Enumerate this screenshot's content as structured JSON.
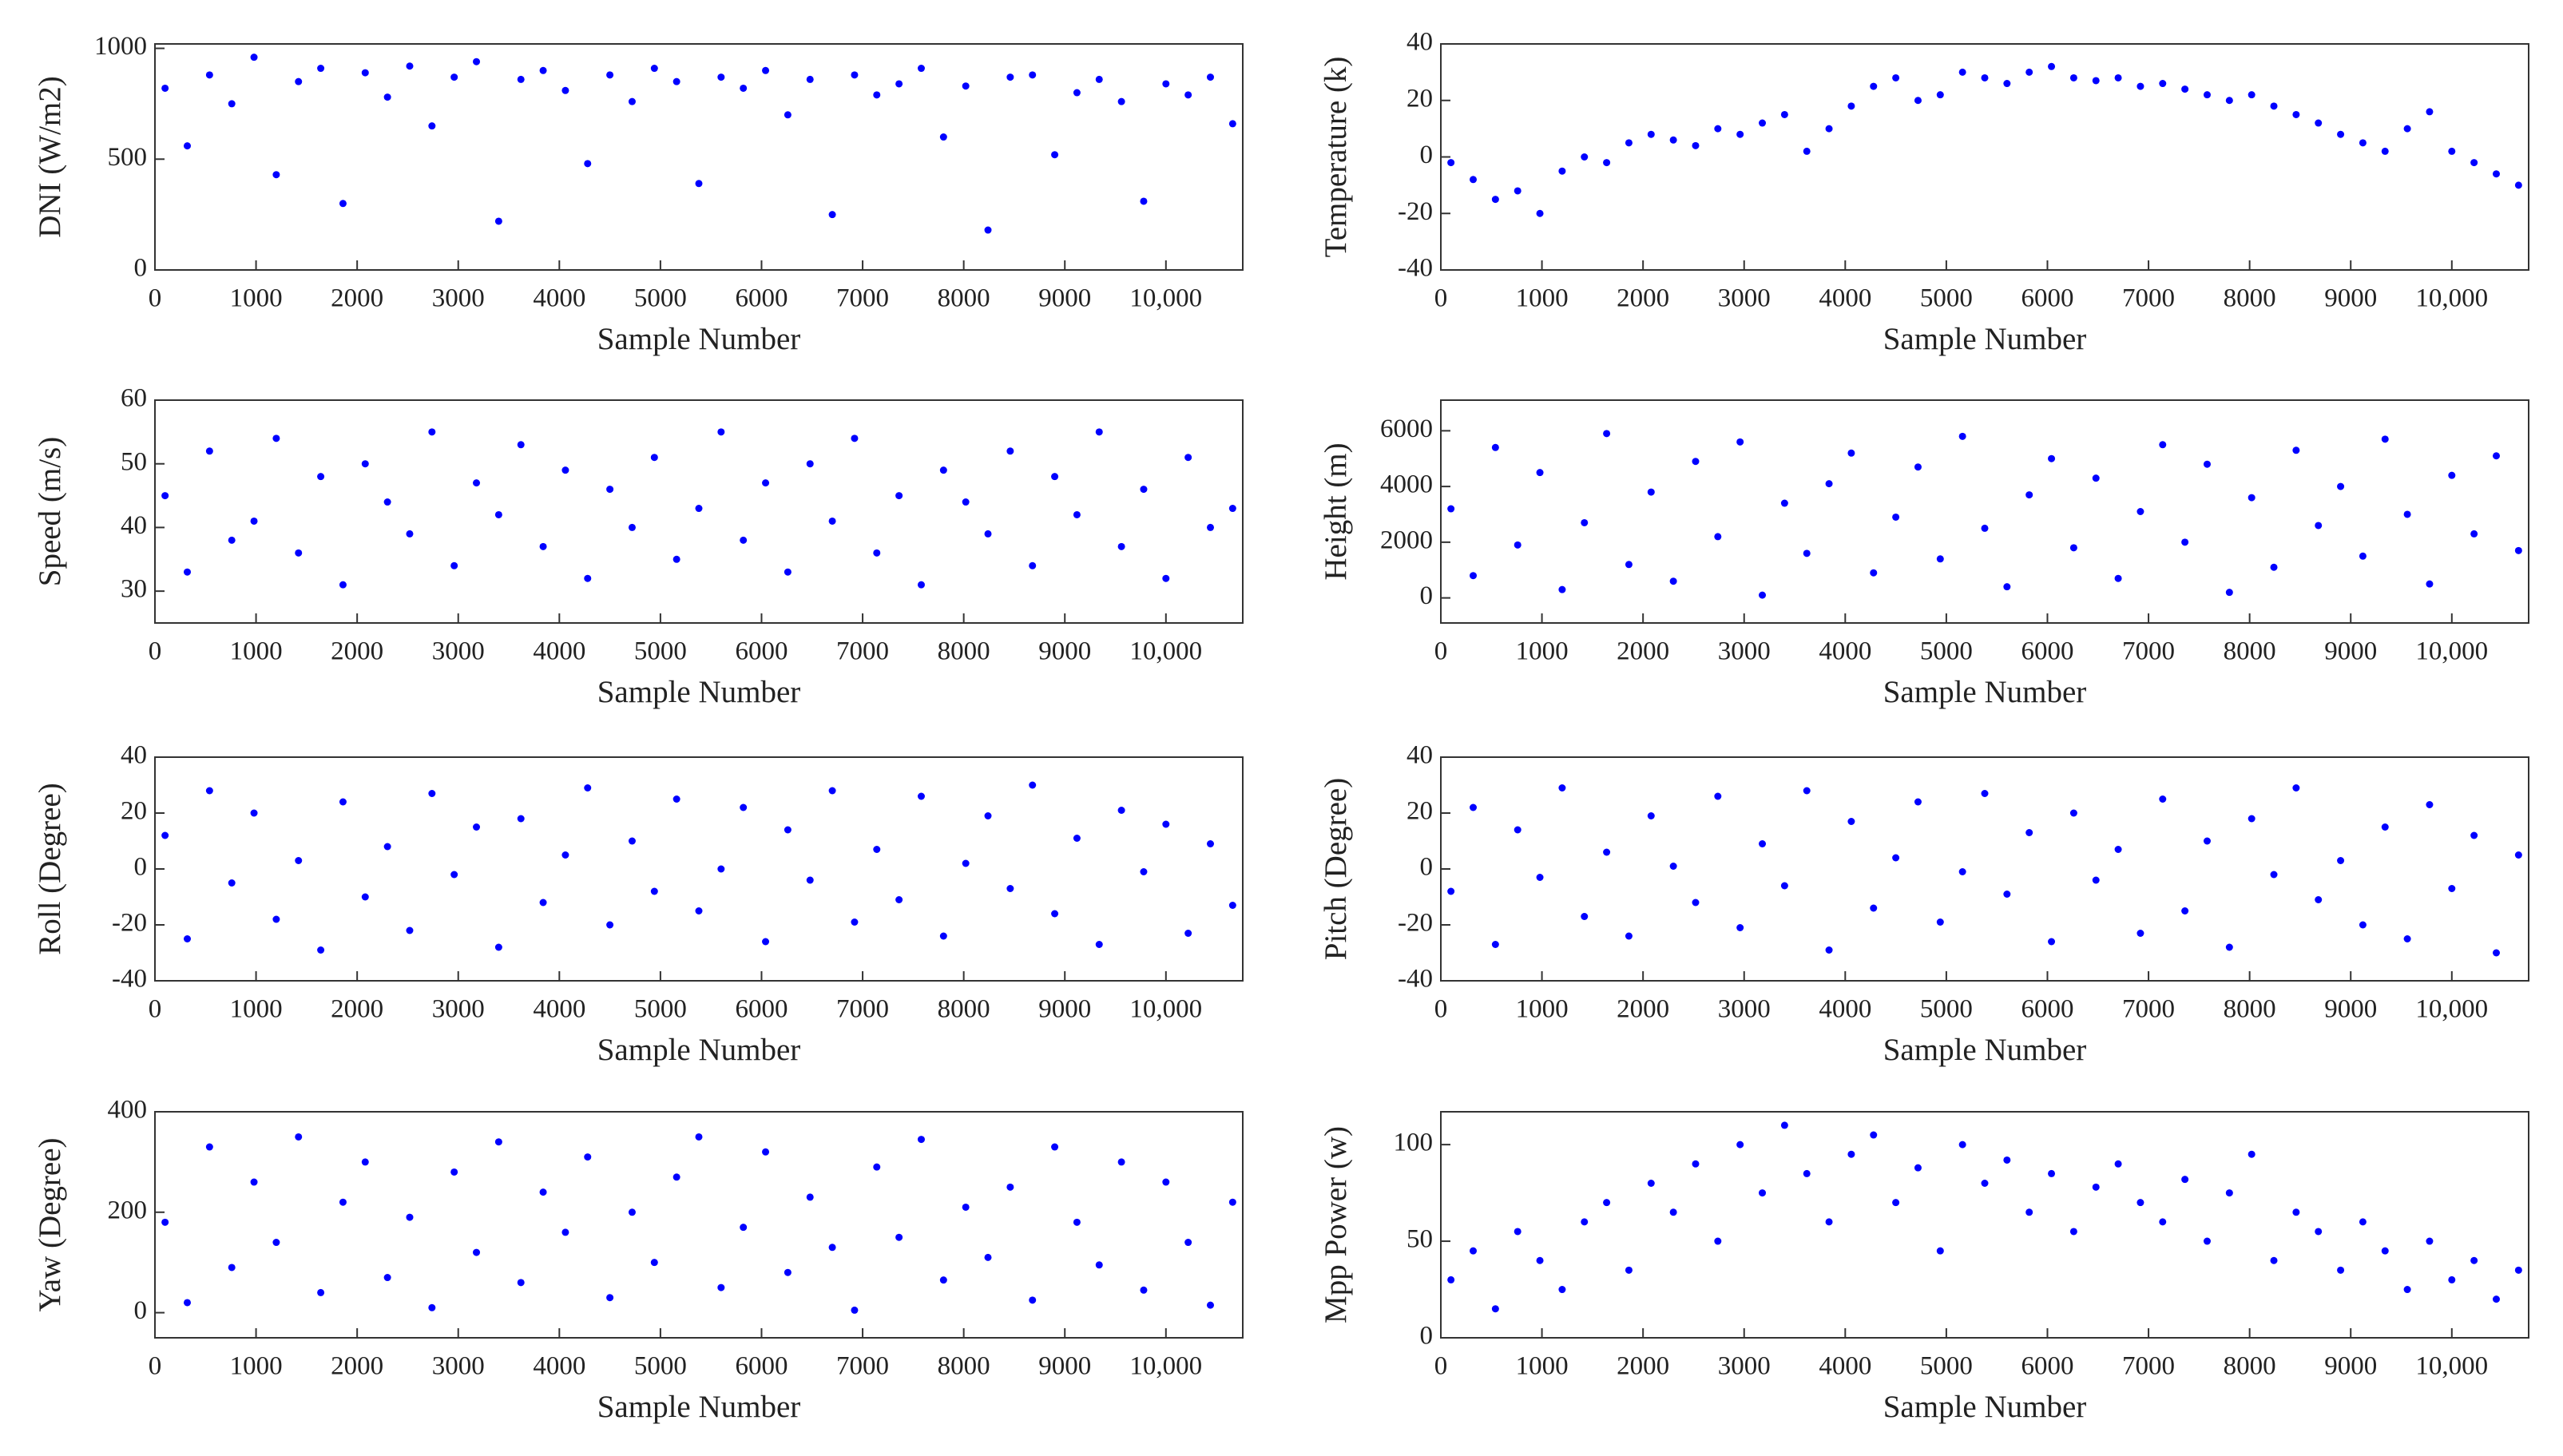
{
  "chart_data": [
    {
      "type": "scatter",
      "xlabel": "Sample Number",
      "ylabel": "DNI (W/m2)",
      "color": "#0000ff",
      "xlim": [
        0,
        10760
      ],
      "xticks": [
        0,
        1000,
        2000,
        3000,
        4000,
        5000,
        6000,
        7000,
        8000,
        9000,
        {
          "value": 10000,
          "label": "10,000"
        }
      ],
      "ylim": [
        0,
        1020
      ],
      "yticks": [
        0,
        500,
        1000
      ],
      "x": [
        100,
        320,
        540,
        760,
        980,
        1200,
        1420,
        1640,
        1860,
        2080,
        2300,
        2520,
        2740,
        2960,
        3180,
        3400,
        3620,
        3840,
        4060,
        4280,
        4500,
        4720,
        4940,
        5160,
        5380,
        5600,
        5820,
        6040,
        6260,
        6480,
        6700,
        6920,
        7140,
        7360,
        7580,
        7800,
        8020,
        8240,
        8460,
        8680,
        8900,
        9120,
        9340,
        9560,
        9780,
        10000,
        10220,
        10440,
        10660
      ],
      "values": [
        820,
        560,
        880,
        750,
        960,
        430,
        850,
        910,
        300,
        890,
        780,
        920,
        650,
        870,
        940,
        220,
        860,
        900,
        810,
        480,
        880,
        760,
        910,
        850,
        390,
        870,
        820,
        900,
        700,
        860,
        250,
        880,
        790,
        840,
        910,
        600,
        830,
        180,
        870,
        880,
        520,
        800,
        860,
        760,
        310,
        840,
        790,
        870,
        660
      ]
    },
    {
      "type": "scatter",
      "xlabel": "Sample Number",
      "ylabel": "Temperature (k)",
      "color": "#0000ff",
      "xlim": [
        0,
        10760
      ],
      "xticks": [
        0,
        1000,
        2000,
        3000,
        4000,
        5000,
        6000,
        7000,
        8000,
        9000,
        {
          "value": 10000,
          "label": "10,000"
        }
      ],
      "ylim": [
        -40,
        40
      ],
      "yticks": [
        -40,
        -20,
        0,
        20,
        40
      ],
      "x": [
        100,
        320,
        540,
        760,
        980,
        1200,
        1420,
        1640,
        1860,
        2080,
        2300,
        2520,
        2740,
        2960,
        3180,
        3400,
        3620,
        3840,
        4060,
        4280,
        4500,
        4720,
        4940,
        5160,
        5380,
        5600,
        5820,
        6040,
        6260,
        6480,
        6700,
        6920,
        7140,
        7360,
        7580,
        7800,
        8020,
        8240,
        8460,
        8680,
        8900,
        9120,
        9340,
        9560,
        9780,
        10000,
        10220,
        10440,
        10660
      ],
      "values": [
        -2,
        -8,
        -15,
        -12,
        -20,
        -5,
        0,
        -2,
        5,
        8,
        6,
        4,
        10,
        8,
        12,
        15,
        2,
        10,
        18,
        25,
        28,
        20,
        22,
        30,
        28,
        26,
        30,
        32,
        28,
        27,
        28,
        25,
        26,
        24,
        22,
        20,
        22,
        18,
        15,
        12,
        8,
        5,
        2,
        10,
        16,
        2,
        -2,
        -6,
        -10
      ]
    },
    {
      "type": "scatter",
      "xlabel": "Sample Number",
      "ylabel": "Speed (m/s)",
      "color": "#0000ff",
      "xlim": [
        0,
        10760
      ],
      "xticks": [
        0,
        1000,
        2000,
        3000,
        4000,
        5000,
        6000,
        7000,
        8000,
        9000,
        {
          "value": 10000,
          "label": "10,000"
        }
      ],
      "ylim": [
        25,
        60
      ],
      "yticks": [
        30,
        40,
        50,
        60
      ],
      "x": [
        100,
        320,
        540,
        760,
        980,
        1200,
        1420,
        1640,
        1860,
        2080,
        2300,
        2520,
        2740,
        2960,
        3180,
        3400,
        3620,
        3840,
        4060,
        4280,
        4500,
        4720,
        4940,
        5160,
        5380,
        5600,
        5820,
        6040,
        6260,
        6480,
        6700,
        6920,
        7140,
        7360,
        7580,
        7800,
        8020,
        8240,
        8460,
        8680,
        8900,
        9120,
        9340,
        9560,
        9780,
        10000,
        10220,
        10440,
        10660
      ],
      "values": [
        45,
        33,
        52,
        38,
        41,
        54,
        36,
        48,
        31,
        50,
        44,
        39,
        55,
        34,
        47,
        42,
        53,
        37,
        49,
        32,
        46,
        40,
        51,
        35,
        43,
        55,
        38,
        47,
        33,
        50,
        41,
        54,
        36,
        45,
        31,
        49,
        44,
        39,
        52,
        34,
        48,
        42,
        55,
        37,
        46,
        32,
        51,
        40,
        43
      ]
    },
    {
      "type": "scatter",
      "xlabel": "Sample Number",
      "ylabel": "Height (m)",
      "color": "#0000ff",
      "xlim": [
        0,
        10760
      ],
      "xticks": [
        0,
        1000,
        2000,
        3000,
        4000,
        5000,
        6000,
        7000,
        8000,
        9000,
        {
          "value": 10000,
          "label": "10,000"
        }
      ],
      "ylim": [
        -900,
        7100
      ],
      "yticks": [
        0,
        2000,
        4000,
        6000
      ],
      "x": [
        100,
        320,
        540,
        760,
        980,
        1200,
        1420,
        1640,
        1860,
        2080,
        2300,
        2520,
        2740,
        2960,
        3180,
        3400,
        3620,
        3840,
        4060,
        4280,
        4500,
        4720,
        4940,
        5160,
        5380,
        5600,
        5820,
        6040,
        6260,
        6480,
        6700,
        6920,
        7140,
        7360,
        7580,
        7800,
        8020,
        8240,
        8460,
        8680,
        8900,
        9120,
        9340,
        9560,
        9780,
        10000,
        10220,
        10440,
        10660
      ],
      "values": [
        3200,
        800,
        5400,
        1900,
        4500,
        300,
        2700,
        5900,
        1200,
        3800,
        600,
        4900,
        2200,
        5600,
        100,
        3400,
        1600,
        4100,
        5200,
        900,
        2900,
        4700,
        1400,
        5800,
        2500,
        400,
        3700,
        5000,
        1800,
        4300,
        700,
        3100,
        5500,
        2000,
        4800,
        200,
        3600,
        1100,
        5300,
        2600,
        4000,
        1500,
        5700,
        3000,
        500,
        4400,
        2300,
        5100,
        1700
      ]
    },
    {
      "type": "scatter",
      "xlabel": "Sample Number",
      "ylabel": "Roll (Degree)",
      "color": "#0000ff",
      "xlim": [
        0,
        10760
      ],
      "xticks": [
        0,
        1000,
        2000,
        3000,
        4000,
        5000,
        6000,
        7000,
        8000,
        9000,
        {
          "value": 10000,
          "label": "10,000"
        }
      ],
      "ylim": [
        -40,
        40
      ],
      "yticks": [
        -40,
        -20,
        0,
        20,
        40
      ],
      "x": [
        100,
        320,
        540,
        760,
        980,
        1200,
        1420,
        1640,
        1860,
        2080,
        2300,
        2520,
        2740,
        2960,
        3180,
        3400,
        3620,
        3840,
        4060,
        4280,
        4500,
        4720,
        4940,
        5160,
        5380,
        5600,
        5820,
        6040,
        6260,
        6480,
        6700,
        6920,
        7140,
        7360,
        7580,
        7800,
        8020,
        8240,
        8460,
        8680,
        8900,
        9120,
        9340,
        9560,
        9780,
        10000,
        10220,
        10440,
        10660
      ],
      "values": [
        12,
        -25,
        28,
        -5,
        20,
        -18,
        3,
        -29,
        24,
        -10,
        8,
        -22,
        27,
        -2,
        15,
        -28,
        18,
        -12,
        5,
        29,
        -20,
        10,
        -8,
        25,
        -15,
        0,
        22,
        -26,
        14,
        -4,
        28,
        -19,
        7,
        -11,
        26,
        -24,
        2,
        19,
        -7,
        30,
        -16,
        11,
        -27,
        21,
        -1,
        16,
        -23,
        9,
        -13
      ]
    },
    {
      "type": "scatter",
      "xlabel": "Sample Number",
      "ylabel": "Pitch (Degree)",
      "color": "#0000ff",
      "xlim": [
        0,
        10760
      ],
      "xticks": [
        0,
        1000,
        2000,
        3000,
        4000,
        5000,
        6000,
        7000,
        8000,
        9000,
        {
          "value": 10000,
          "label": "10,000"
        }
      ],
      "ylim": [
        -40,
        40
      ],
      "yticks": [
        -40,
        -20,
        0,
        20,
        40
      ],
      "x": [
        100,
        320,
        540,
        760,
        980,
        1200,
        1420,
        1640,
        1860,
        2080,
        2300,
        2520,
        2740,
        2960,
        3180,
        3400,
        3620,
        3840,
        4060,
        4280,
        4500,
        4720,
        4940,
        5160,
        5380,
        5600,
        5820,
        6040,
        6260,
        6480,
        6700,
        6920,
        7140,
        7360,
        7580,
        7800,
        8020,
        8240,
        8460,
        8680,
        8900,
        9120,
        9340,
        9560,
        9780,
        10000,
        10220,
        10440,
        10660
      ],
      "values": [
        -8,
        22,
        -27,
        14,
        -3,
        29,
        -17,
        6,
        -24,
        19,
        1,
        -12,
        26,
        -21,
        9,
        -6,
        28,
        -29,
        17,
        -14,
        4,
        24,
        -19,
        -1,
        27,
        -9,
        13,
        -26,
        20,
        -4,
        7,
        -23,
        25,
        -15,
        10,
        -28,
        18,
        -2,
        29,
        -11,
        3,
        -20,
        15,
        -25,
        23,
        -7,
        12,
        -30,
        5
      ]
    },
    {
      "type": "scatter",
      "xlabel": "Sample Number",
      "ylabel": "Yaw (Degree)",
      "color": "#0000ff",
      "xlim": [
        0,
        10760
      ],
      "xticks": [
        0,
        1000,
        2000,
        3000,
        4000,
        5000,
        6000,
        7000,
        8000,
        9000,
        {
          "value": 10000,
          "label": "10,000"
        }
      ],
      "ylim": [
        -50,
        400
      ],
      "yticks": [
        0,
        200,
        400
      ],
      "x": [
        100,
        320,
        540,
        760,
        980,
        1200,
        1420,
        1640,
        1860,
        2080,
        2300,
        2520,
        2740,
        2960,
        3180,
        3400,
        3620,
        3840,
        4060,
        4280,
        4500,
        4720,
        4940,
        5160,
        5380,
        5600,
        5820,
        6040,
        6260,
        6480,
        6700,
        6920,
        7140,
        7360,
        7580,
        7800,
        8020,
        8240,
        8460,
        8680,
        8900,
        9120,
        9340,
        9560,
        9780,
        10000,
        10220,
        10440,
        10660
      ],
      "values": [
        180,
        20,
        330,
        90,
        260,
        140,
        350,
        40,
        220,
        300,
        70,
        190,
        10,
        280,
        120,
        340,
        60,
        240,
        160,
        310,
        30,
        200,
        100,
        270,
        350,
        50,
        170,
        320,
        80,
        230,
        130,
        5,
        290,
        150,
        345,
        65,
        210,
        110,
        250,
        25,
        330,
        180,
        95,
        300,
        45,
        260,
        140,
        15,
        220
      ]
    },
    {
      "type": "scatter",
      "xlabel": "Sample Number",
      "ylabel": "Mpp Power (w)",
      "color": "#0000ff",
      "xlim": [
        0,
        10760
      ],
      "xticks": [
        0,
        1000,
        2000,
        3000,
        4000,
        5000,
        6000,
        7000,
        8000,
        9000,
        {
          "value": 10000,
          "label": "10,000"
        }
      ],
      "ylim": [
        0,
        117
      ],
      "yticks": [
        0,
        50,
        100
      ],
      "x": [
        100,
        320,
        540,
        760,
        980,
        1200,
        1420,
        1640,
        1860,
        2080,
        2300,
        2520,
        2740,
        2960,
        3180,
        3400,
        3620,
        3840,
        4060,
        4280,
        4500,
        4720,
        4940,
        5160,
        5380,
        5600,
        5820,
        6040,
        6260,
        6480,
        6700,
        6920,
        7140,
        7360,
        7580,
        7800,
        8020,
        8240,
        8460,
        8680,
        8900,
        9120,
        9340,
        9560,
        9780,
        10000,
        10220,
        10440,
        10660
      ],
      "values": [
        30,
        45,
        15,
        55,
        40,
        25,
        60,
        70,
        35,
        80,
        65,
        90,
        50,
        100,
        75,
        110,
        85,
        60,
        95,
        105,
        70,
        88,
        45,
        100,
        80,
        92,
        65,
        85,
        55,
        78,
        90,
        70,
        60,
        82,
        50,
        75,
        95,
        40,
        65,
        55,
        35,
        60,
        45,
        25,
        50,
        30,
        40,
        20,
        35
      ]
    }
  ]
}
